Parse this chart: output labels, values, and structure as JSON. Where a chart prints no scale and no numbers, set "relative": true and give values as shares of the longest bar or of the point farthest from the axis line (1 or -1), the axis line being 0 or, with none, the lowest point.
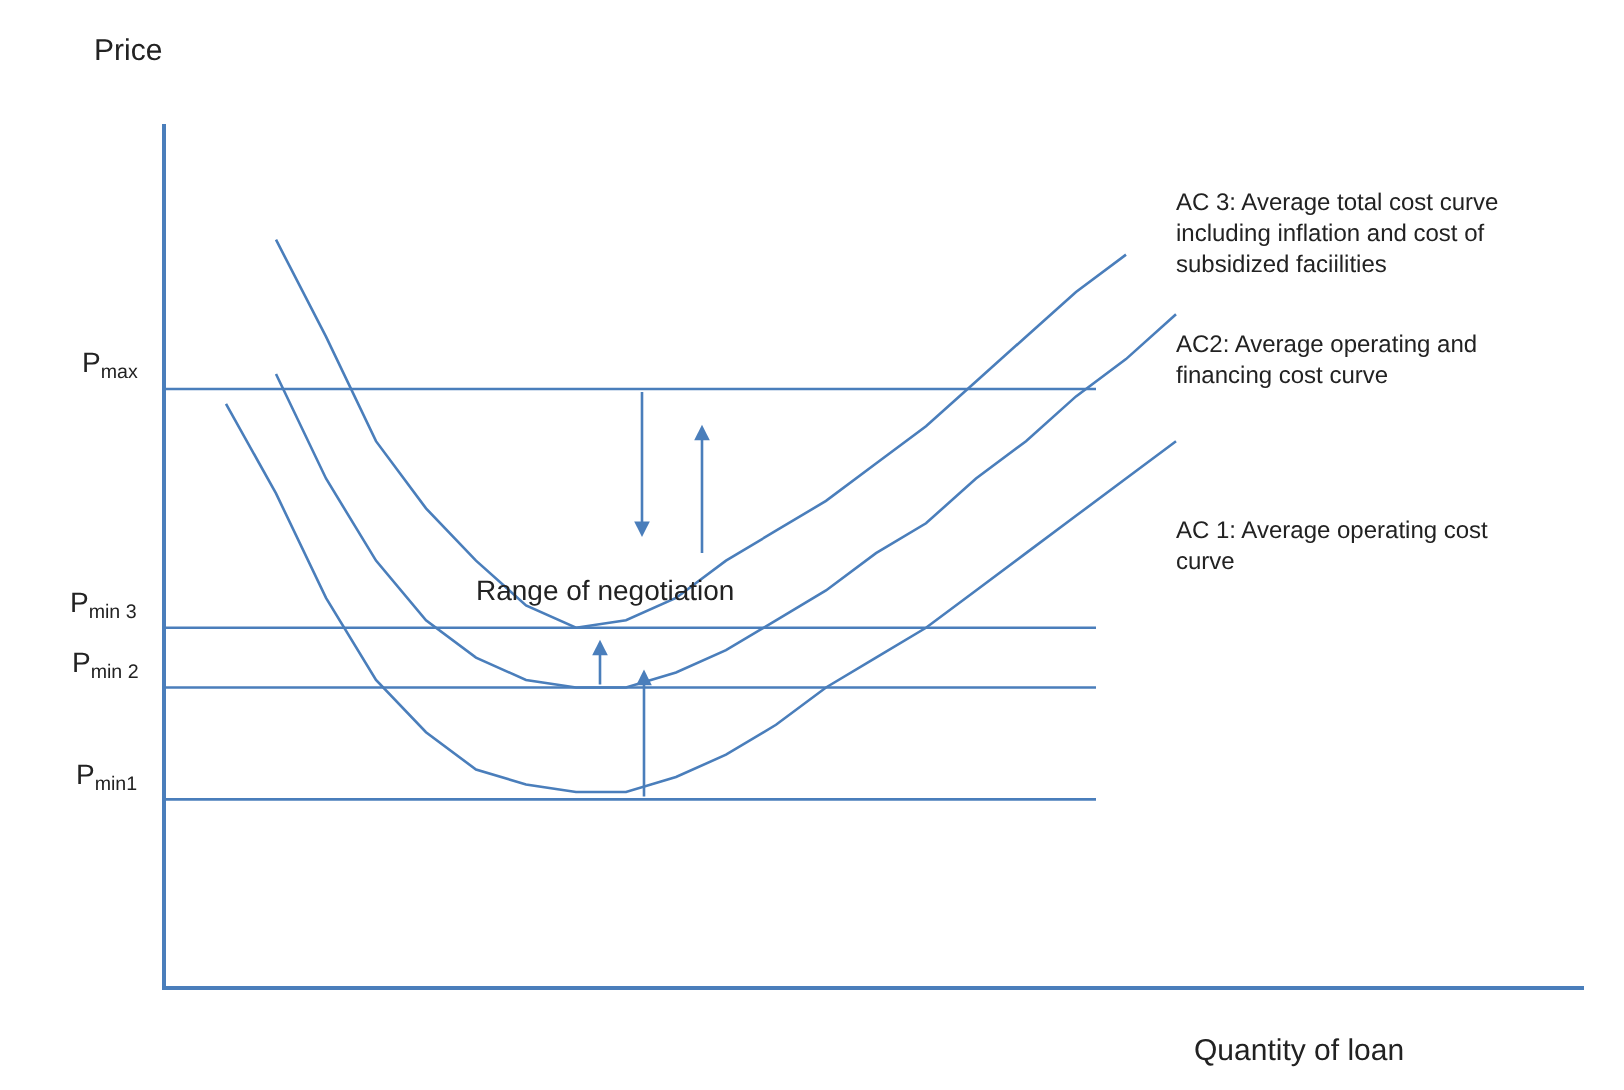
{
  "chart_data": {
    "type": "line",
    "relative": true,
    "xlabel": "Quantity of loan",
    "categories": [
      null,
      null,
      null,
      null,
      null,
      null,
      null,
      null,
      null,
      null,
      null,
      null,
      null,
      null,
      null,
      null,
      null,
      null,
      null,
      null
    ],
    "series": [
      {
        "name": "AC 3: Average total cost curve including inflation and cost of subsidized faciilities",
        "color": "#4a7ebb",
        "values": [
          null,
          1.0,
          0.87,
          0.73,
          0.64,
          0.57,
          0.51,
          0.48,
          0.49,
          0.52,
          0.57,
          0.61,
          0.65,
          0.7,
          0.75,
          0.81,
          0.87,
          0.93,
          0.98,
          null
        ]
      },
      {
        "name": "AC2: Average operating and financing cost curve",
        "color": "#4a7ebb",
        "values": [
          null,
          0.82,
          0.68,
          0.57,
          0.49,
          0.44,
          0.41,
          0.4,
          0.4,
          0.42,
          0.45,
          0.49,
          0.53,
          0.58,
          0.62,
          0.68,
          0.73,
          0.79,
          0.84,
          0.9
        ]
      },
      {
        "name": "AC 1: Average operating cost curve",
        "color": "#4a7ebb",
        "values": [
          0.78,
          0.66,
          0.52,
          0.41,
          0.34,
          0.29,
          0.27,
          0.26,
          0.26,
          0.28,
          0.31,
          0.35,
          0.4,
          0.44,
          0.48,
          0.53,
          0.58,
          0.63,
          0.68,
          0.73
        ]
      }
    ],
    "ref_lines": [
      {
        "axis": "y",
        "value": 0.8,
        "label": "P$_{max}$",
        "color": "#4a7ebb"
      },
      {
        "axis": "y",
        "value": 0.48,
        "label": "P$_{min 3}$",
        "color": "#4a7ebb"
      },
      {
        "axis": "y",
        "value": 0.4,
        "label": "P$_{min 2}$",
        "color": "#4a7ebb"
      },
      {
        "axis": "y",
        "value": 0.25,
        "label": "P$_{min1}$",
        "color": "#4a7ebb"
      }
    ],
    "annotations": [
      "Price",
      "Range of negotiation"
    ],
    "legend": false,
    "tick_labels": false,
    "marker": "none",
    "line_style": "solid"
  }
}
